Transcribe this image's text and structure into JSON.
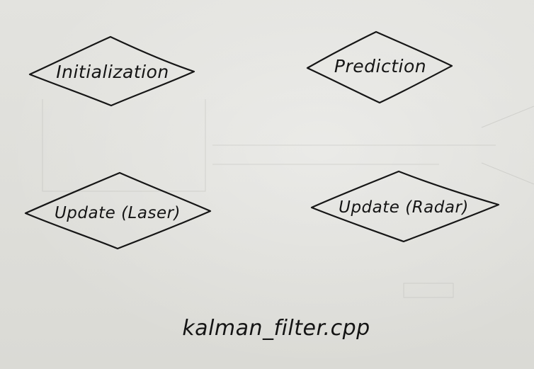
{
  "diagram": {
    "nodes": [
      {
        "id": "initialization",
        "label": "Initialization",
        "shape": "diamond"
      },
      {
        "id": "prediction",
        "label": "Prediction",
        "shape": "diamond"
      },
      {
        "id": "update_laser",
        "label": "Update (Laser)",
        "shape": "diamond"
      },
      {
        "id": "update_radar",
        "label": "Update (Radar)",
        "shape": "diamond"
      }
    ],
    "caption": "kalman_filter.cpp"
  },
  "colors": {
    "paper": "#dcdcd8",
    "ink": "#161616"
  }
}
